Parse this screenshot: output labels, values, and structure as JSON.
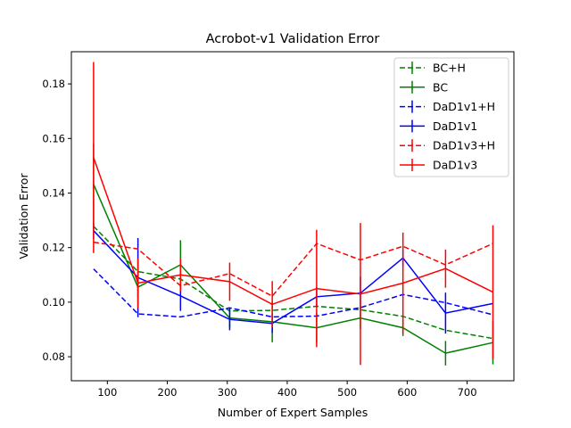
{
  "chart_data": {
    "type": "line",
    "title": "Acrobot-v1 Validation Error",
    "xlabel": "Number of Expert Samples",
    "ylabel": "Validation Error",
    "xlim": [
      40,
      778
    ],
    "ylim": [
      0.0712,
      0.1918
    ],
    "xticks": [
      100,
      200,
      300,
      400,
      500,
      600,
      700
    ],
    "yticks": [
      0.08,
      0.1,
      0.12,
      0.14,
      0.16,
      0.18
    ],
    "ytick_labels": [
      "0.08",
      "0.10",
      "0.12",
      "0.14",
      "0.16",
      "0.18"
    ],
    "grid": false,
    "legend_position": "upper right",
    "x": [
      77,
      151,
      222,
      304,
      375,
      449,
      522,
      593,
      664,
      743
    ],
    "series": [
      {
        "name": "BC+H",
        "color": "#008000",
        "dash": true,
        "values": [
          0.1278,
          0.1112,
          0.1085,
          0.0968,
          0.097,
          0.0985,
          0.0972,
          0.0948,
          0.0897,
          0.0867
        ],
        "errors": [
          0,
          0,
          0,
          0,
          0,
          0,
          0,
          0,
          0,
          0
        ]
      },
      {
        "name": "BC",
        "color": "#008000",
        "dash": false,
        "values": [
          0.1432,
          0.1055,
          0.1137,
          0.0942,
          0.0928,
          0.0906,
          0.0942,
          0.0906,
          0.0813,
          0.0852
        ],
        "errors": [
          0.015,
          0.004,
          0.009,
          0.0035,
          0.0075,
          0.0055,
          0.004,
          0.003,
          0.0045,
          0.008
        ]
      },
      {
        "name": "DaD1v1+H",
        "color": "#0000ff",
        "dash": true,
        "values": [
          0.1122,
          0.0957,
          0.0946,
          0.0979,
          0.0946,
          0.0949,
          0.098,
          0.1028,
          0.0998,
          0.0954
        ],
        "errors": [
          0,
          0,
          0,
          0,
          0,
          0,
          0,
          0,
          0,
          0
        ]
      },
      {
        "name": "DaD1v1",
        "color": "#0000ff",
        "dash": false,
        "values": [
          0.1262,
          0.109,
          0.1023,
          0.0937,
          0.0922,
          0.102,
          0.1033,
          0.1162,
          0.096,
          0.0995
        ],
        "errors": [
          0.003,
          0.0145,
          0.0055,
          0.004,
          0.0035,
          0.0035,
          0.006,
          0.003,
          0.0075,
          0
        ]
      },
      {
        "name": "DaD1v3+H",
        "color": "#ff0000",
        "dash": true,
        "values": [
          0.122,
          0.1195,
          0.106,
          0.1105,
          0.1022,
          0.1215,
          0.1155,
          0.1205,
          0.1137,
          0.1215
        ],
        "errors": [
          0,
          0,
          0,
          0,
          0,
          0,
          0,
          0,
          0,
          0
        ]
      },
      {
        "name": "DaD1v3",
        "color": "#ff0000",
        "dash": false,
        "values": [
          0.153,
          0.107,
          0.11,
          0.1075,
          0.0992,
          0.105,
          0.103,
          0.107,
          0.1123,
          0.1037
        ],
        "errors": [
          0.035,
          0.009,
          0.006,
          0.007,
          0.0085,
          0.0215,
          0.026,
          0.0185,
          0.007,
          0.0245
        ]
      }
    ]
  }
}
